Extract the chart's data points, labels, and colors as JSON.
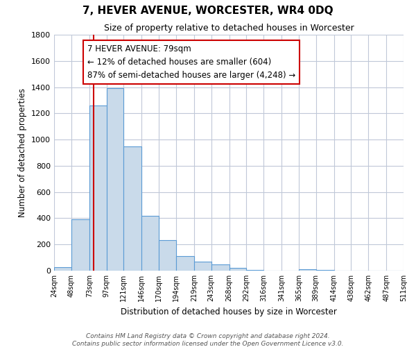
{
  "title": "7, HEVER AVENUE, WORCESTER, WR4 0DQ",
  "subtitle": "Size of property relative to detached houses in Worcester",
  "xlabel": "Distribution of detached houses by size in Worcester",
  "ylabel": "Number of detached properties",
  "bar_color": "#c9daea",
  "bar_edge_color": "#5b9bd5",
  "bar_values": [
    25,
    390,
    1260,
    1390,
    950,
    420,
    235,
    110,
    70,
    50,
    20,
    5,
    2,
    1,
    10,
    5,
    0,
    0,
    0,
    0
  ],
  "bin_edges": [
    24,
    48,
    73,
    97,
    121,
    146,
    170,
    194,
    219,
    243,
    268,
    292,
    316,
    341,
    365,
    389,
    414,
    438,
    462,
    487,
    511
  ],
  "bin_labels": [
    "24sqm",
    "48sqm",
    "73sqm",
    "97sqm",
    "121sqm",
    "146sqm",
    "170sqm",
    "194sqm",
    "219sqm",
    "243sqm",
    "268sqm",
    "292sqm",
    "316sqm",
    "341sqm",
    "365sqm",
    "389sqm",
    "414sqm",
    "438sqm",
    "462sqm",
    "487sqm",
    "511sqm"
  ],
  "property_line_x": 79,
  "property_line_color": "#cc0000",
  "annotation_title": "7 HEVER AVENUE: 79sqm",
  "annotation_line1": "← 12% of detached houses are smaller (604)",
  "annotation_line2": "87% of semi-detached houses are larger (4,248) →",
  "annotation_box_color": "#ffffff",
  "annotation_box_edge": "#cc0000",
  "ylim": [
    0,
    1800
  ],
  "yticks": [
    0,
    200,
    400,
    600,
    800,
    1000,
    1200,
    1400,
    1600,
    1800
  ],
  "footer_line1": "Contains HM Land Registry data © Crown copyright and database right 2024.",
  "footer_line2": "Contains public sector information licensed under the Open Government Licence v3.0.",
  "background_color": "#ffffff",
  "grid_color": "#c0c8d8"
}
